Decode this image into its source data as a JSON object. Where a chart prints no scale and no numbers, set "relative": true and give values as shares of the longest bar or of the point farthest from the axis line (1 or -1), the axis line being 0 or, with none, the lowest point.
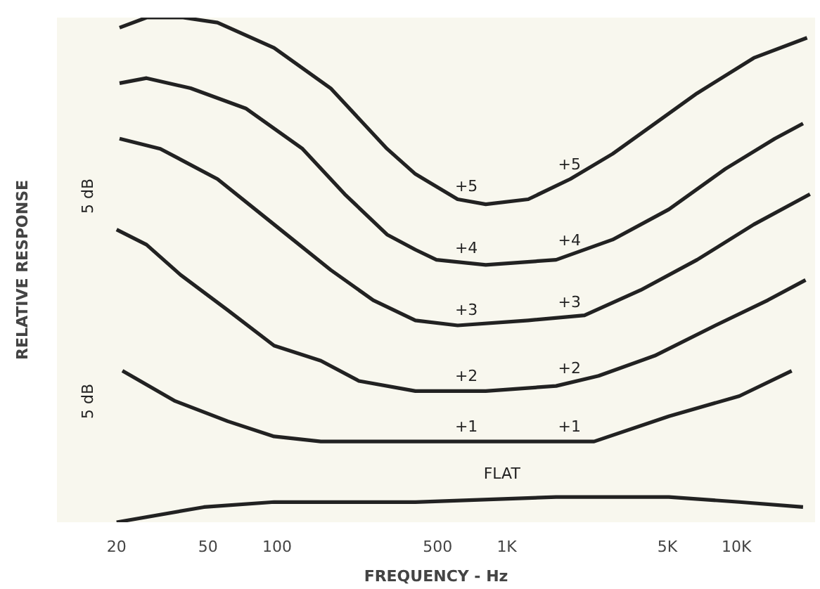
{
  "chart_data": {
    "type": "line",
    "relative": true,
    "log": "x",
    "grid": false,
    "marker": "none",
    "line_style": "solid",
    "xlabel": "FREQUENCY - Hz",
    "ylabel": "RELATIVE RESPONSE",
    "xlim": [
      11,
      22000
    ],
    "xticks": [
      20,
      50,
      100,
      500,
      {
        "value": 1000,
        "label": "1K"
      },
      {
        "value": 5000,
        "label": "5K"
      },
      {
        "value": 10000,
        "label": "10K"
      }
    ],
    "series": [
      {
        "name": "+5",
        "color": "#222222",
        "x": [
          20.6,
          27,
          39,
          55,
          97,
          171,
          301,
          400,
          611,
          810,
          1240,
          1890,
          2890,
          4410,
          6740,
          11900,
          20300
        ],
        "values": [
          0.98,
          1.0,
          1.0,
          0.99,
          0.94,
          0.86,
          0.74,
          0.69,
          0.64,
          0.63,
          0.64,
          0.68,
          0.73,
          0.79,
          0.85,
          0.92,
          0.96
        ]
      },
      {
        "name": "+4",
        "color": "#222222",
        "x": [
          20.6,
          27,
          42,
          73,
          129,
          197,
          301,
          400,
          494,
          810,
          1640,
          2890,
          5080,
          8940,
          14700,
          19500
        ],
        "values": [
          0.87,
          0.88,
          0.86,
          0.82,
          0.74,
          0.65,
          0.57,
          0.54,
          0.52,
          0.51,
          0.52,
          0.56,
          0.62,
          0.7,
          0.76,
          0.79
        ]
      },
      {
        "name": "+3",
        "color": "#222222",
        "x": [
          20.6,
          31,
          55,
          97,
          171,
          262,
          400,
          611,
          1240,
          2180,
          3830,
          6740,
          11900,
          20900
        ],
        "values": [
          0.76,
          0.74,
          0.68,
          0.59,
          0.5,
          0.44,
          0.4,
          0.39,
          0.4,
          0.41,
          0.46,
          0.52,
          0.59,
          0.65
        ]
      },
      {
        "name": "+2",
        "color": "#222222",
        "x": [
          20,
          27,
          38,
          61,
          97,
          155,
          227,
          400,
          810,
          1640,
          2510,
          4410,
          8100,
          13700,
          20000
        ],
        "values": [
          0.58,
          0.55,
          0.49,
          0.42,
          0.35,
          0.32,
          0.28,
          0.26,
          0.26,
          0.27,
          0.29,
          0.33,
          0.39,
          0.44,
          0.48
        ]
      },
      {
        "name": "+1",
        "color": "#222222",
        "x": [
          21.2,
          36,
          61,
          97,
          155,
          400,
          1240,
          2400,
          5080,
          10300,
          17400
        ],
        "values": [
          0.3,
          0.24,
          0.2,
          0.17,
          0.16,
          0.16,
          0.16,
          0.16,
          0.21,
          0.25,
          0.3
        ]
      },
      {
        "color": "#222222",
        "x": [
          20,
          48,
          97,
          400,
          1640,
          5080,
          10300,
          19500
        ],
        "values": [
          0,
          0.03,
          0.04,
          0.04,
          0.05,
          0.05,
          0.04,
          0.03
        ]
      }
    ],
    "annotations": [
      "FLAT",
      "5 dB",
      "5 dB"
    ]
  }
}
